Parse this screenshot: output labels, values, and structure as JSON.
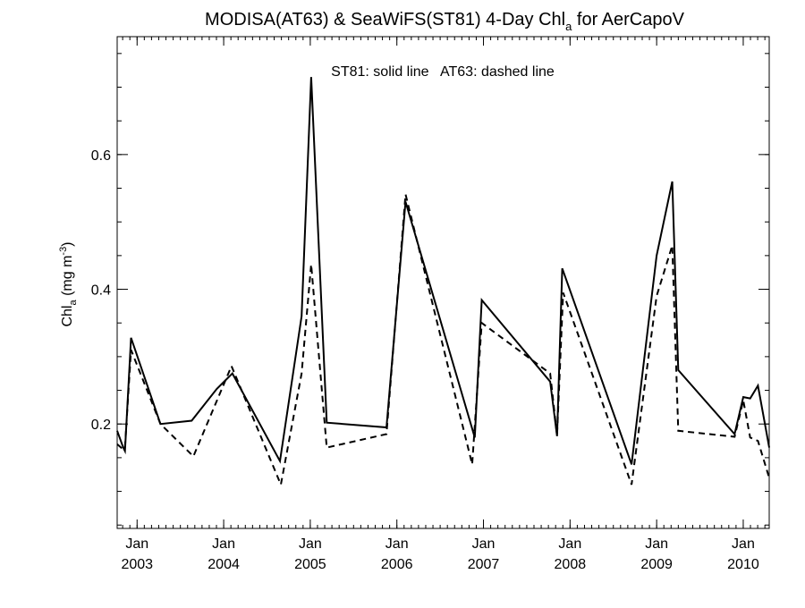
{
  "chart_data": {
    "type": "line",
    "title_main": "MODISA(AT63) & SeaWiFS(ST81) 4-Day Chl",
    "title_sub": "a",
    "title_tail": " for AerCapoV",
    "annotation": "ST81: solid line   AT63: dashed line",
    "ylabel_main": "Chl",
    "ylabel_sub": "a",
    "ylabel_unit_pre": " (mg m",
    "ylabel_unit_sup": "-3",
    "ylabel_unit_post": ")",
    "x_unit": "decimal year",
    "xlim": [
      2002.77,
      2010.3
    ],
    "ylim": [
      0.045,
      0.775
    ],
    "y_ticks": [
      {
        "value": 0.2,
        "label": "0.2"
      },
      {
        "value": 0.4,
        "label": "0.4"
      },
      {
        "value": 0.6,
        "label": "0.6"
      }
    ],
    "y_minor_step": 0.05,
    "x_ticks": [
      {
        "value": 2003.0,
        "month": "Jan",
        "year": "2003"
      },
      {
        "value": 2004.0,
        "month": "Jan",
        "year": "2004"
      },
      {
        "value": 2005.0,
        "month": "Jan",
        "year": "2005"
      },
      {
        "value": 2006.0,
        "month": "Jan",
        "year": "2006"
      },
      {
        "value": 2007.0,
        "month": "Jan",
        "year": "2007"
      },
      {
        "value": 2008.0,
        "month": "Jan",
        "year": "2008"
      },
      {
        "value": 2009.0,
        "month": "Jan",
        "year": "2009"
      },
      {
        "value": 2010.0,
        "month": "Jan",
        "year": "2010"
      }
    ],
    "series": [
      {
        "line_style": "solid",
        "x": [
          2002.77,
          2002.84,
          2002.86,
          2002.93,
          2003.27,
          2003.63,
          2003.92,
          2004.1,
          2004.65,
          2004.9,
          2005.01,
          2005.19,
          2005.88,
          2006.1,
          2006.9,
          2006.98,
          2007.77,
          2007.85,
          2007.91,
          2008.71,
          2009.0,
          2009.18,
          2009.25,
          2009.9,
          2010.0,
          2010.08,
          2010.17,
          2010.3
        ],
        "y": [
          0.19,
          0.165,
          0.16,
          0.328,
          0.2,
          0.205,
          0.252,
          0.275,
          0.145,
          0.36,
          0.715,
          0.202,
          0.195,
          0.53,
          0.18,
          0.384,
          0.263,
          0.182,
          0.431,
          0.14,
          0.45,
          0.56,
          0.28,
          0.185,
          0.24,
          0.238,
          0.257,
          0.165
        ]
      },
      {
        "line_style": "dashed",
        "x": [
          2002.77,
          2002.84,
          2002.86,
          2002.93,
          2003.27,
          2003.65,
          2004.09,
          2004.66,
          2004.9,
          2005.01,
          2005.19,
          2005.88,
          2006.1,
          2006.87,
          2006.98,
          2007.77,
          2007.85,
          2007.92,
          2008.71,
          2009.0,
          2009.18,
          2009.25,
          2009.9,
          2010.0,
          2010.08,
          2010.17,
          2010.3
        ],
        "y": [
          0.17,
          0.162,
          0.165,
          0.31,
          0.2,
          0.152,
          0.286,
          0.11,
          0.275,
          0.437,
          0.165,
          0.185,
          0.541,
          0.14,
          0.35,
          0.275,
          0.183,
          0.395,
          0.11,
          0.39,
          0.465,
          0.19,
          0.181,
          0.235,
          0.18,
          0.175,
          0.12
        ]
      }
    ]
  }
}
